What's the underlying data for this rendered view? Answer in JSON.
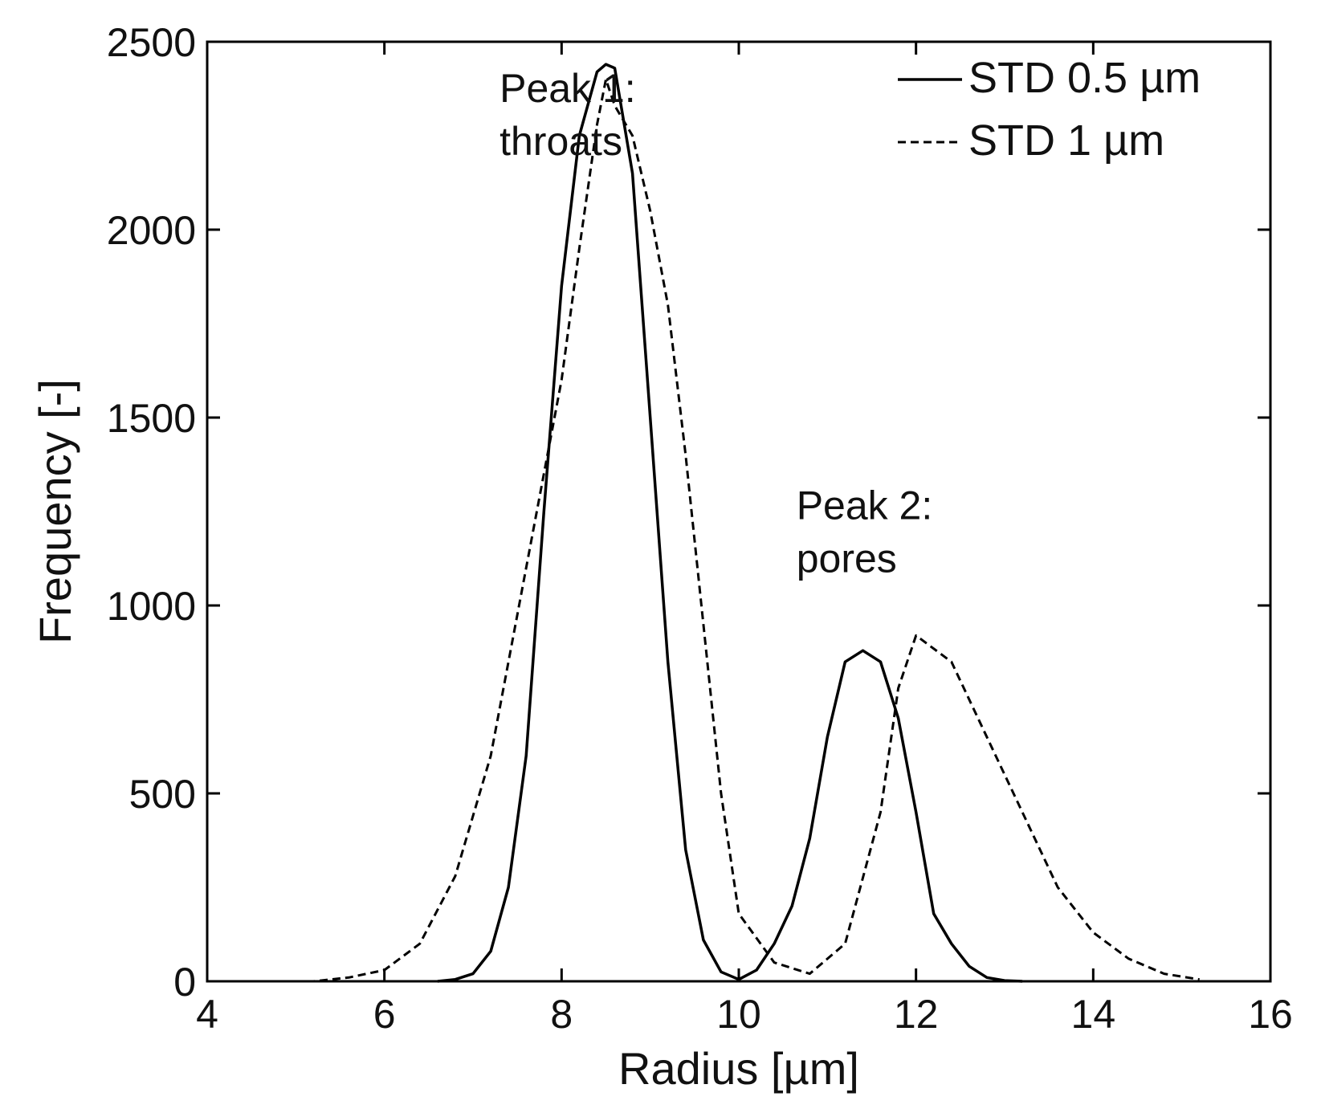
{
  "chart_data": {
    "type": "line",
    "xlabel": "Radius [µm]",
    "ylabel": "Frequency [-]",
    "xlim": [
      4,
      16
    ],
    "ylim": [
      0,
      2500
    ],
    "xticks": [
      4,
      6,
      8,
      10,
      12,
      14,
      16
    ],
    "yticks": [
      0,
      500,
      1000,
      1500,
      2000,
      2500
    ],
    "xtick_labels": [
      "4",
      "6",
      "8",
      "10",
      "12",
      "14",
      "16"
    ],
    "ytick_labels": [
      "0",
      "500",
      "1000",
      "1500",
      "2000",
      "2500"
    ],
    "grid": false,
    "legend_position": "top-right",
    "series": [
      {
        "name": "STD 0.5 µm",
        "style": "solid",
        "color": "#000000",
        "x": [
          6.6,
          6.8,
          7.0,
          7.2,
          7.4,
          7.6,
          7.8,
          8.0,
          8.2,
          8.4,
          8.5,
          8.6,
          8.8,
          9.0,
          9.2,
          9.4,
          9.6,
          9.8,
          10.0,
          10.2,
          10.4,
          10.6,
          10.8,
          11.0,
          11.2,
          11.4,
          11.6,
          11.8,
          12.0,
          12.2,
          12.4,
          12.6,
          12.8,
          13.0,
          13.2
        ],
        "y": [
          0,
          5,
          20,
          80,
          250,
          600,
          1250,
          1850,
          2250,
          2420,
          2440,
          2430,
          2150,
          1500,
          850,
          350,
          110,
          25,
          5,
          30,
          100,
          200,
          380,
          650,
          850,
          880,
          850,
          700,
          450,
          180,
          100,
          40,
          10,
          2,
          0
        ]
      },
      {
        "name": "STD 1 µm",
        "style": "dashed",
        "color": "#000000",
        "x": [
          4.4,
          4.8,
          5.2,
          5.6,
          6.0,
          6.4,
          6.8,
          7.2,
          7.6,
          8.0,
          8.2,
          8.4,
          8.5,
          8.6,
          8.8,
          9.0,
          9.2,
          9.4,
          9.6,
          9.8,
          10.0,
          10.4,
          10.8,
          11.2,
          11.6,
          11.8,
          12.0,
          12.4,
          12.8,
          13.2,
          13.6,
          14.0,
          14.4,
          14.8,
          15.2
        ],
        "y": [
          0,
          0,
          0,
          10,
          30,
          100,
          280,
          600,
          1100,
          1600,
          1950,
          2280,
          2400,
          2330,
          2250,
          2050,
          1800,
          1400,
          950,
          500,
          180,
          50,
          20,
          100,
          450,
          780,
          920,
          850,
          650,
          450,
          250,
          130,
          60,
          20,
          5
        ]
      }
    ],
    "annotations": [
      {
        "lines": [
          "Peak 1:",
          "throats"
        ],
        "x": 7.3,
        "y": 2340
      },
      {
        "lines": [
          "Peak 2:",
          "pores"
        ],
        "x": 10.65,
        "y": 1230
      }
    ]
  }
}
